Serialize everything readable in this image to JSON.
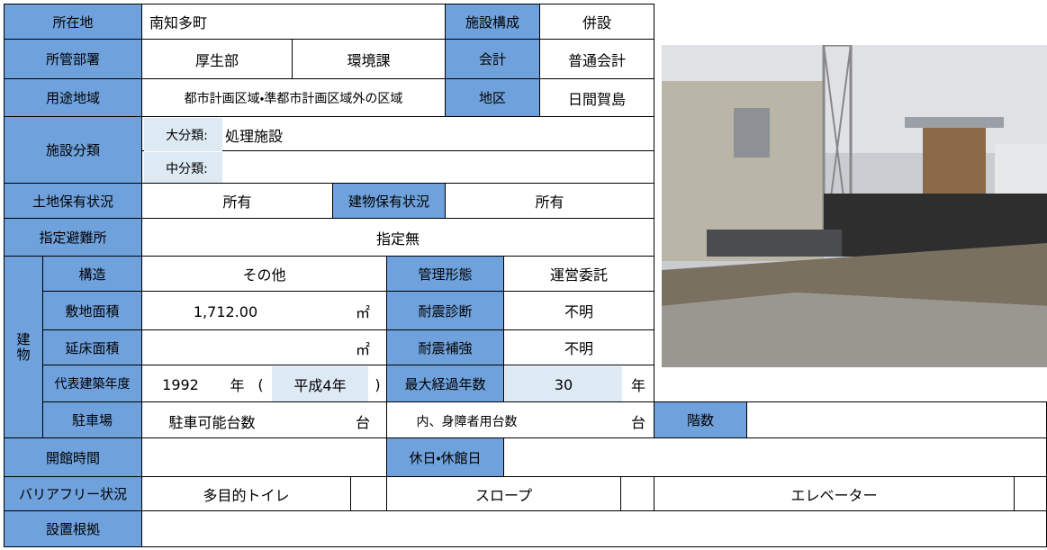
{
  "basic": {
    "location_label": "所在地",
    "location": "南知多町",
    "composition_label": "施設構成",
    "composition": "併設",
    "department_label": "所管部署",
    "department": "厚生部",
    "section": "環境課",
    "account_label": "会計",
    "account": "普通会計",
    "zoning_label": "用途地域",
    "zoning": "都市計画区域・準都市計画区域外の区域",
    "district_label": "地区",
    "district": "日間賀島",
    "category_label": "施設分類",
    "major_label": "大分類:",
    "major": "処理施設",
    "minor_label": "中分類:",
    "land_label": "土地保有状況",
    "land": "所有",
    "building_own_label": "建物保有状況",
    "building_own": "所有",
    "evac_label": "指定避難所",
    "evac": "指定無"
  },
  "building": {
    "label": "建物",
    "structure_label": "構造",
    "structure": "その他",
    "management_label": "管理形態",
    "management": "運営委託",
    "site_area_label": "敷地面積",
    "site_area": "1,712.00",
    "unit": "㎡",
    "quake_diag_label": "耐震診断",
    "quake_diag": "不明",
    "floor_area_label": "延床面積",
    "quake_reinf_label": "耐震補強",
    "quake_reinf": "不明",
    "year_label": "代表建築年度",
    "year": "1992",
    "year_unit": "年",
    "paren_open": "(",
    "era": "平成4年",
    "paren_close": ")",
    "max_age_label": "最大経過年数",
    "max_age": "30",
    "age_unit": "年",
    "parking_label": "駐車場",
    "parking_count_label": "駐車可能台数",
    "count_unit": "台",
    "disabled_label": "内、身障者用台数",
    "floors_label": "階数"
  },
  "access": {
    "hours_label": "開館時間",
    "holiday_label": "休日・休館日",
    "barrier_label": "バリアフリー状況",
    "toilet": "多目的トイレ",
    "slope": "スロープ",
    "elevator": "エレベーター",
    "basis_label": "設置根拠"
  }
}
